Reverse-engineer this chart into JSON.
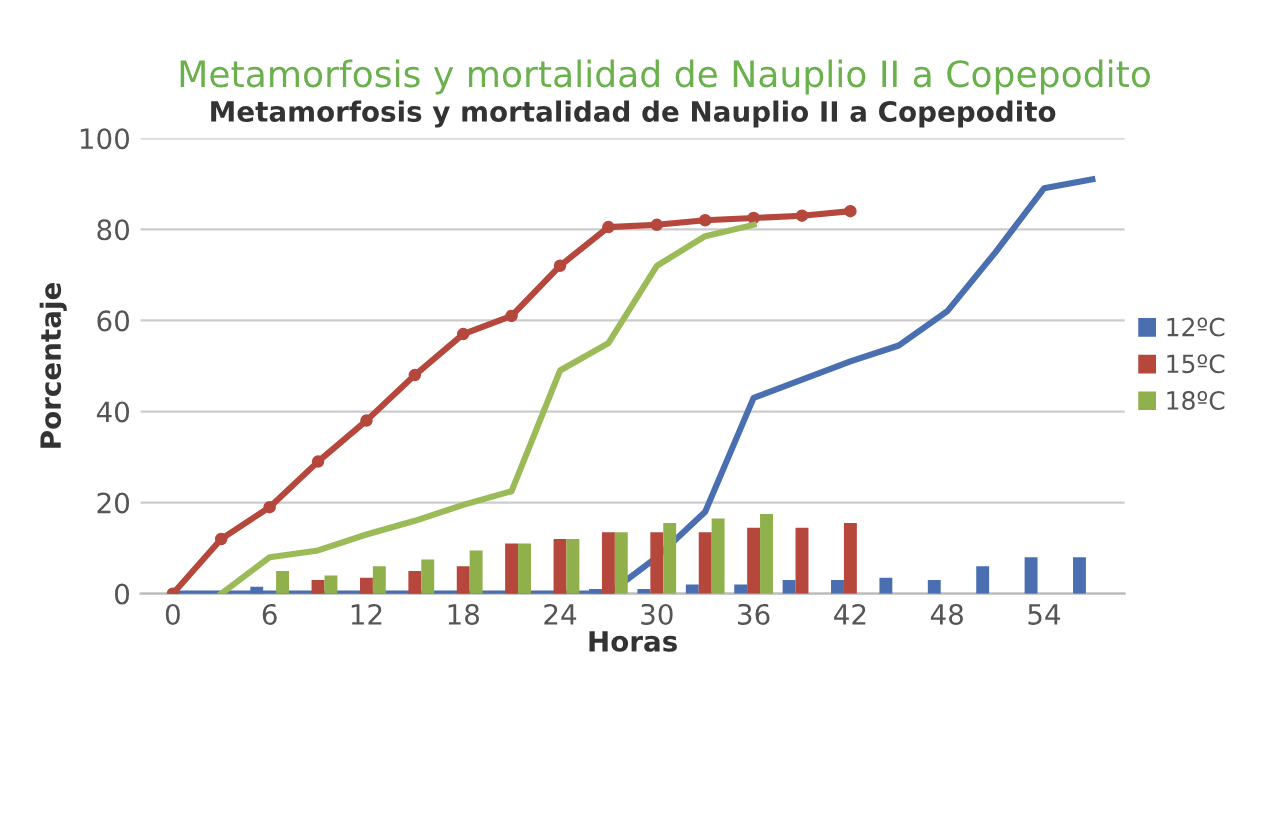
{
  "chart_data": {
    "type": "bar",
    "title": "Metamorfosis y mortalidad de Nauplio II a Copepodito",
    "xlabel": "Horas",
    "ylabel": "Porcentaje",
    "annotations": [
      "Metamorfosis y mortalidad de Nauplio II a Copepodito"
    ],
    "xlim": [
      -2,
      59
    ],
    "xticks": [
      0,
      6,
      12,
      18,
      24,
      30,
      36,
      42,
      48,
      54
    ],
    "ylim": [
      0,
      100
    ],
    "yticks": [
      0,
      20,
      40,
      60,
      80,
      100
    ],
    "grid": "y",
    "legend": "right",
    "series": [
      {
        "name": "12ºC",
        "color": "#4a6fb0",
        "x": [
          6,
          27,
          30,
          33,
          36,
          39,
          42,
          45,
          48,
          51,
          54,
          57
        ],
        "values": [
          1.5,
          1,
          1,
          2,
          2,
          3,
          3,
          3.5,
          3,
          6,
          8,
          8
        ]
      },
      {
        "name": "15ºC",
        "color": "#b5473c",
        "x": [
          9,
          12,
          15,
          18,
          21,
          24,
          27,
          30,
          33,
          36,
          39,
          42
        ],
        "values": [
          3,
          3.5,
          5,
          6,
          11,
          12,
          13.5,
          13.5,
          13.5,
          14.5,
          14.5,
          15.5
        ]
      },
      {
        "name": "18ºC",
        "color": "#8fb04a",
        "x": [
          6,
          9,
          12,
          15,
          18,
          21,
          24,
          27,
          30,
          33,
          36
        ],
        "values": [
          5,
          4,
          6,
          7.5,
          9.5,
          11,
          12,
          13.5,
          15.5,
          16.5,
          17.5
        ]
      },
      {
        "type": "line",
        "color": "#4a6fb0",
        "x": [
          0,
          3,
          6,
          9,
          12,
          15,
          18,
          21,
          24,
          27,
          30,
          33,
          36,
          39,
          42,
          45,
          48,
          51,
          54,
          57
        ],
        "values": [
          0,
          0,
          0,
          0,
          0,
          0,
          0,
          0,
          0,
          0,
          8,
          18,
          43,
          47,
          51,
          54.5,
          62,
          75,
          89,
          91
        ]
      },
      {
        "type": "line",
        "color": "#b5473c",
        "marker": "circle",
        "x": [
          0,
          3,
          6,
          9,
          12,
          15,
          18,
          21,
          24,
          27,
          30,
          33,
          36,
          39,
          42
        ],
        "values": [
          0,
          12,
          19,
          29,
          38,
          48,
          57,
          61,
          72,
          80.5,
          81,
          82,
          82.5,
          83,
          84
        ]
      },
      {
        "type": "line",
        "color": "#9bbb59",
        "x": [
          3,
          6,
          9,
          12,
          15,
          18,
          21,
          24,
          27,
          30,
          33,
          36
        ],
        "values": [
          0,
          8,
          9.5,
          13,
          16,
          19.5,
          22.5,
          49,
          55,
          72,
          78.5,
          81
        ]
      }
    ]
  }
}
